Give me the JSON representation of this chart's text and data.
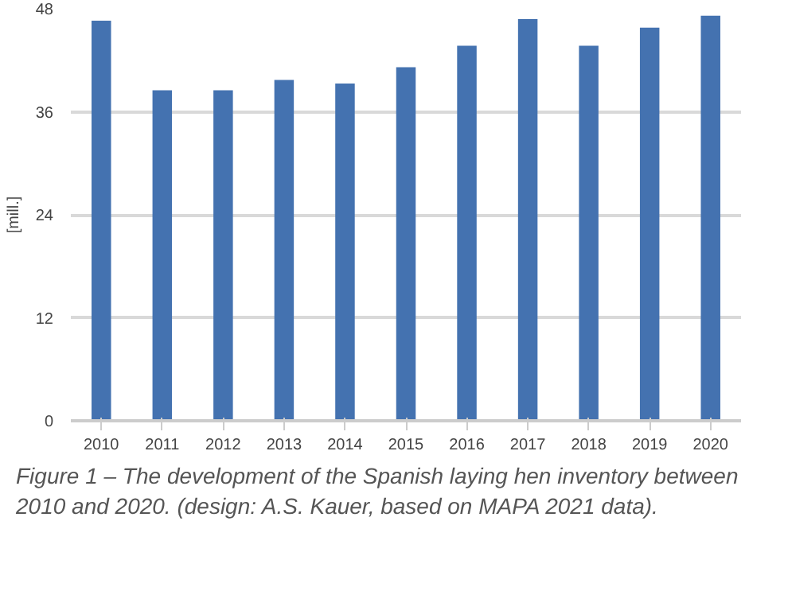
{
  "chart_data": {
    "type": "bar",
    "ylabel": "[mill.]",
    "categories": [
      "2010",
      "2011",
      "2012",
      "2013",
      "2014",
      "2015",
      "2016",
      "2017",
      "2018",
      "2019",
      "2020"
    ],
    "values": [
      46.6,
      38.5,
      38.5,
      39.7,
      39.3,
      41.2,
      43.7,
      46.8,
      43.7,
      45.8,
      47.2
    ],
    "color": "#4472b0",
    "ylim": [
      0,
      48
    ],
    "yticks": [
      0,
      12,
      24,
      36,
      48
    ],
    "grid": "y",
    "annotations": [
      "Figure 1 – The development of the Spanish laying hen inventory between 2010 and 2020. (design: A.S. Kauer, based on MAPA 2021 data)."
    ]
  }
}
